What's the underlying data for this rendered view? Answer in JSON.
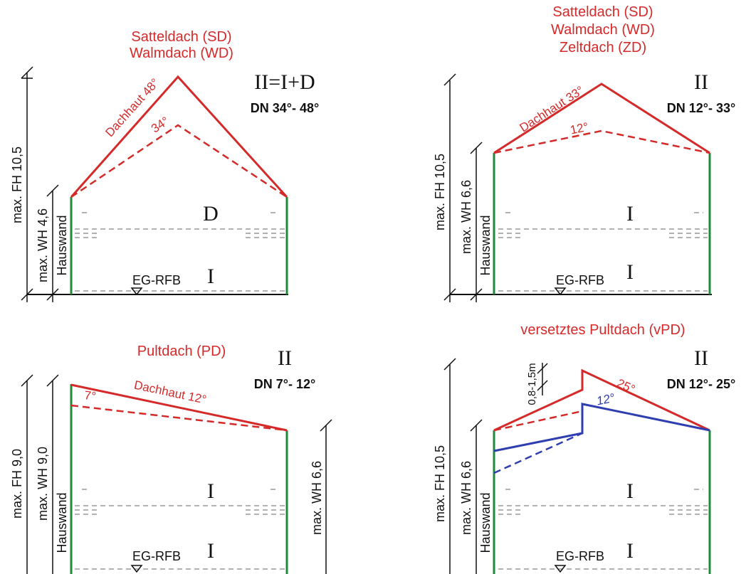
{
  "colors": {
    "roof": "#d42a2a",
    "wall": "#1f8a3a",
    "blue": "#2f3fb0",
    "dim": "#111111",
    "floor": "#999999"
  },
  "p1": {
    "title1": "Satteldach (SD)",
    "title2": "Walmdach (WD)",
    "formula": "II=I+D",
    "dn": "DN 34°- 48°",
    "fh": "max. FH 10,5",
    "wh": "max. WH 4,6",
    "wall": "Hauswand",
    "roof_label": "Dachhaut 48°",
    "angle2": "34°",
    "upper": "D",
    "lower": "I",
    "rfb": "EG-RFB"
  },
  "p2": {
    "title1": "Satteldach (SD)",
    "title2": "Walmdach (WD)",
    "title3": "Zeltdach (ZD)",
    "formula": "II",
    "dn": "DN 12°- 33°",
    "fh": "max. FH 10,5",
    "wh": "max. WH 6,6",
    "wall": "Hauswand",
    "roof_label": "Dachhaut 33°",
    "angle2": "12°",
    "upper": "I",
    "lower": "I",
    "rfb": "EG-RFB"
  },
  "p3": {
    "title1": "Pultdach (PD)",
    "formula": "II",
    "dn": "DN 7°- 12°",
    "fh": "max. FH 9,0",
    "wh": "max. WH 9,0",
    "wh_right": "max. WH 6,6",
    "wall": "Hauswand",
    "roof_label": "Dachhaut 12°",
    "angle2": "7°",
    "upper": "I",
    "lower": "I",
    "rfb": "EG-RFB"
  },
  "p4": {
    "title1": "versetztes Pultdach (vPD)",
    "formula": "II",
    "dn": "DN 12°- 25°",
    "fh": "max. FH 10,5",
    "wh": "max. WH 6,6",
    "offset": "0,8-1,5m",
    "wall": "Hauswand",
    "angle_red": "25°",
    "angle_blue": "12°",
    "upper": "I",
    "lower": "I",
    "rfb": "EG-RFB"
  }
}
